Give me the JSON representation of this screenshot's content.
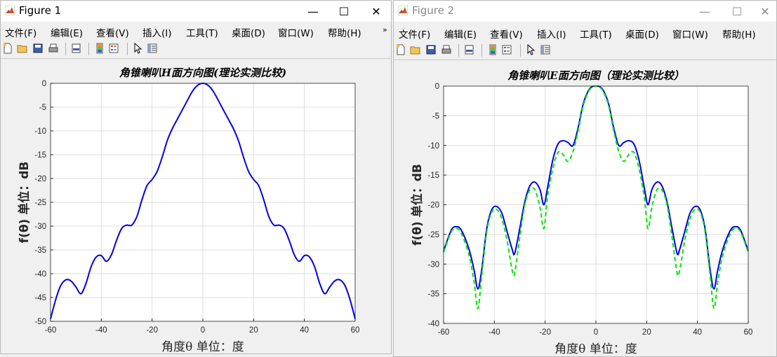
{
  "windows": [
    {
      "title": "Figure 1",
      "menu": [
        "文件(F)",
        "编辑(E)",
        "查看(V)",
        "插入(I)",
        "工具(T)",
        "桌面(D)",
        "窗口(W)",
        "帮助(H)"
      ],
      "menu_overflow": "»"
    },
    {
      "title": "Figure 2",
      "menu": [
        "文件(F)",
        "编辑(E)",
        "查看(V)",
        "插入(I)",
        "工具(T)",
        "桌面(D)",
        "窗口(W)",
        "帮助(H)"
      ]
    }
  ],
  "window_controls": {
    "minimize": "—",
    "maximize": "☐",
    "close": "✕"
  },
  "toolbar_icons": [
    "new-figure-icon",
    "open-file-icon",
    "save-icon",
    "print-icon",
    "print-preview-icon",
    "insert-colorbar-icon",
    "insert-legend-icon",
    "edit-plot-arrow-icon",
    "property-inspector-icon"
  ],
  "colors": {
    "theory": "#0000e6",
    "measured": "#00e600",
    "grid": "#dedede"
  },
  "chart_data": [
    {
      "type": "line",
      "title": "角锥喇叭H面方向图(理论实测比较)",
      "xlabel": "角度θ  单位：度",
      "ylabel": "f(θ)  单位：dB",
      "xlim": [
        -60,
        60
      ],
      "ylim": [
        -50,
        0
      ],
      "xticks": [
        -60,
        -40,
        -20,
        0,
        20,
        40,
        60
      ],
      "yticks": [
        0,
        -5,
        -10,
        -15,
        -20,
        -25,
        -30,
        -35,
        -40,
        -45,
        -50
      ],
      "grid": true,
      "series": [
        {
          "style": "solid",
          "color": "#0000e6",
          "x": [
            -60,
            -58,
            -56,
            -54,
            -52,
            -50,
            -48,
            -46,
            -44,
            -42,
            -40,
            -38,
            -36,
            -34,
            -32,
            -30,
            -28,
            -26,
            -24,
            -22,
            -20,
            -18,
            -16,
            -14,
            -12,
            -10,
            -8,
            -6,
            -4,
            -2,
            0,
            2,
            4,
            6,
            8,
            10,
            12,
            14,
            16,
            18,
            20,
            22,
            24,
            26,
            28,
            30,
            32,
            34,
            36,
            38,
            40,
            42,
            44,
            46,
            48,
            50,
            52,
            54,
            56,
            58,
            60
          ],
          "y": [
            -49.5,
            -45.5,
            -42.5,
            -41.3,
            -41.5,
            -42.8,
            -44.2,
            -42,
            -38.5,
            -36.5,
            -36.2,
            -37.4,
            -36,
            -33,
            -30.5,
            -29.8,
            -29.8,
            -28,
            -24.5,
            -21.5,
            -20.2,
            -18.5,
            -15.5,
            -12,
            -9.5,
            -7.5,
            -5.5,
            -3.5,
            -1.6,
            -0.4,
            0,
            -0.4,
            -1.6,
            -3.5,
            -5.5,
            -7.5,
            -9.5,
            -12,
            -15.5,
            -18.5,
            -20.2,
            -21.5,
            -24.5,
            -28,
            -29.8,
            -29.8,
            -30.5,
            -33,
            -36,
            -37.4,
            -36.2,
            -36.5,
            -38.5,
            -42,
            -44.2,
            -42.8,
            -41.5,
            -41.3,
            -42.5,
            -45.5,
            -49.5
          ]
        }
      ]
    },
    {
      "type": "line",
      "title": "角锥喇叭E面方向图（理论实测比较）",
      "xlabel": "角度θ  单位：度",
      "ylabel": "f(θ)  单位：dB",
      "xlim": [
        -60,
        60
      ],
      "ylim": [
        -40,
        0
      ],
      "xticks": [
        -60,
        -40,
        -20,
        0,
        20,
        40,
        60
      ],
      "yticks": [
        0,
        -5,
        -10,
        -15,
        -20,
        -25,
        -30,
        -35,
        -40
      ],
      "grid": true,
      "series": [
        {
          "style": "solid",
          "color": "#0000e6",
          "x": [
            -60,
            -57,
            -55,
            -53,
            -50,
            -48,
            -46.5,
            -45,
            -43,
            -41,
            -39,
            -37,
            -35,
            -33,
            -32,
            -30,
            -28,
            -26,
            -24,
            -22,
            -20.5,
            -19,
            -17,
            -15,
            -13,
            -11,
            -9,
            -7,
            -5,
            -3,
            -1.5,
            0,
            1.5,
            3,
            5,
            7,
            9,
            11,
            13,
            15,
            17,
            19,
            20.5,
            22,
            24,
            26,
            28,
            30,
            32,
            33,
            35,
            37,
            39,
            41,
            43,
            45,
            46.5,
            48,
            50,
            53,
            55,
            57,
            60
          ],
          "y": [
            -27.8,
            -24.3,
            -23.7,
            -24.3,
            -27.5,
            -31,
            -34.2,
            -31,
            -24,
            -20.8,
            -20.3,
            -21.5,
            -24.5,
            -27.5,
            -28.2,
            -24,
            -19.5,
            -16.8,
            -16.2,
            -17.5,
            -20,
            -17,
            -12.5,
            -9.8,
            -9.2,
            -9.5,
            -10,
            -7,
            -3,
            -0.8,
            -0.1,
            0,
            -0.1,
            -0.8,
            -3,
            -7,
            -10,
            -9.5,
            -9.2,
            -9.8,
            -12.5,
            -17,
            -20,
            -17.5,
            -16.2,
            -16.8,
            -19.5,
            -24,
            -28.2,
            -27.5,
            -24.5,
            -21.5,
            -20.3,
            -20.8,
            -24,
            -31,
            -34.2,
            -31,
            -27.5,
            -24.3,
            -23.7,
            -24.3,
            -27.8
          ]
        },
        {
          "style": "dashed",
          "color": "#00e600",
          "x": [
            -60,
            -57,
            -55,
            -53,
            -50,
            -48,
            -46.5,
            -45,
            -43,
            -41,
            -39,
            -37,
            -35,
            -33,
            -32,
            -30,
            -28,
            -26,
            -24,
            -22,
            -20.5,
            -19,
            -17,
            -15,
            -13,
            -11,
            -9,
            -7,
            -5,
            -3,
            -1.5,
            0,
            1.5,
            3,
            5,
            7,
            9,
            11,
            13,
            15,
            17,
            19,
            20.5,
            22,
            24,
            26,
            28,
            30,
            32,
            33,
            35,
            37,
            39,
            41,
            43,
            45,
            46.5,
            48,
            50,
            53,
            55,
            57,
            60
          ],
          "y": [
            -28,
            -24.6,
            -24,
            -24.8,
            -28.5,
            -33,
            -37.5,
            -32,
            -24.5,
            -21.2,
            -20.8,
            -22.5,
            -26,
            -31,
            -31.5,
            -25.5,
            -20,
            -17.5,
            -17.5,
            -20.5,
            -24,
            -18.5,
            -14,
            -11.2,
            -11.5,
            -12.7,
            -11,
            -7.5,
            -3.3,
            -1,
            -0.2,
            0,
            -0.2,
            -1,
            -3.3,
            -7.5,
            -11,
            -12.7,
            -11.5,
            -11.2,
            -14,
            -18.5,
            -24,
            -20.5,
            -17.5,
            -17.5,
            -20,
            -25.5,
            -31.5,
            -31,
            -26,
            -22.5,
            -20.8,
            -21.2,
            -24.5,
            -32,
            -37.5,
            -33,
            -28.5,
            -24.8,
            -24,
            -24.6,
            -28
          ]
        }
      ]
    }
  ]
}
